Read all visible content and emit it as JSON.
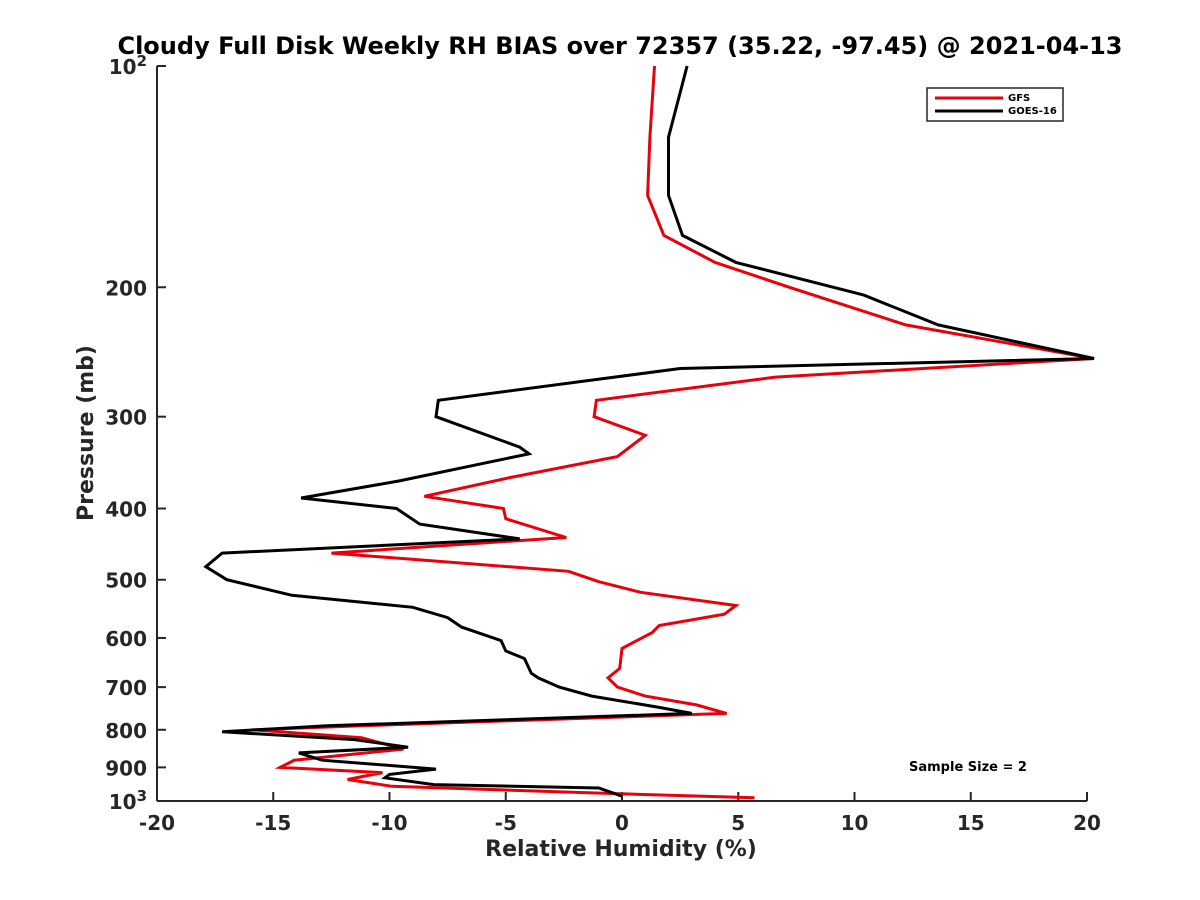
{
  "chart_data": {
    "type": "line",
    "title": "Cloudy Full Disk Weekly RH BIAS over 72357 (35.22, -97.45) @ 2021-04-13",
    "xlabel": "Relative Humidity (%)",
    "ylabel": "Pressure (mb)",
    "xlim": [
      -20,
      20
    ],
    "ylim": [
      100,
      1000
    ],
    "y_scale": "log",
    "y_reversed": true,
    "grid": false,
    "legend_position": "top-right",
    "x_ticks": [
      -20,
      -15,
      -10,
      -5,
      0,
      5,
      10,
      15,
      20
    ],
    "x_tick_labels": [
      "-20",
      "-15",
      "-10",
      "-5",
      "0",
      "5",
      "10",
      "15",
      "20"
    ],
    "y_ticks": [
      100,
      200,
      300,
      400,
      500,
      600,
      700,
      800,
      900,
      1000
    ],
    "y_tick_labels": [
      {
        "base": "10",
        "exp": "2"
      },
      {
        "base": "200",
        "exp": ""
      },
      {
        "base": "300",
        "exp": ""
      },
      {
        "base": "400",
        "exp": ""
      },
      {
        "base": "500",
        "exp": ""
      },
      {
        "base": "600",
        "exp": ""
      },
      {
        "base": "700",
        "exp": ""
      },
      {
        "base": "800",
        "exp": ""
      },
      {
        "base": "900",
        "exp": ""
      },
      {
        "base": "10",
        "exp": "3"
      }
    ],
    "annotation": "Sample Size = 2",
    "series": [
      {
        "name": "GFS",
        "color": "#e8000b",
        "points": [
          {
            "x": 1.4,
            "y": 100
          },
          {
            "x": 1.2,
            "y": 125
          },
          {
            "x": 1.1,
            "y": 150
          },
          {
            "x": 1.8,
            "y": 170
          },
          {
            "x": 4.0,
            "y": 185
          },
          {
            "x": 7.2,
            "y": 200
          },
          {
            "x": 12.2,
            "y": 225
          },
          {
            "x": 20.3,
            "y": 250
          },
          {
            "x": 6.6,
            "y": 265
          },
          {
            "x": -1.1,
            "y": 285
          },
          {
            "x": -1.2,
            "y": 300
          },
          {
            "x": 1.0,
            "y": 318
          },
          {
            "x": -0.2,
            "y": 340
          },
          {
            "x": -4.8,
            "y": 363
          },
          {
            "x": -8.5,
            "y": 385
          },
          {
            "x": -5.1,
            "y": 400
          },
          {
            "x": -5.0,
            "y": 413
          },
          {
            "x": -2.4,
            "y": 438
          },
          {
            "x": -12.5,
            "y": 460
          },
          {
            "x": -2.3,
            "y": 487
          },
          {
            "x": -1.0,
            "y": 503
          },
          {
            "x": 0.8,
            "y": 520
          },
          {
            "x": 4.9,
            "y": 542
          },
          {
            "x": 4.4,
            "y": 557
          },
          {
            "x": 1.6,
            "y": 577
          },
          {
            "x": 1.3,
            "y": 590
          },
          {
            "x": 0.0,
            "y": 620
          },
          {
            "x": -0.1,
            "y": 660
          },
          {
            "x": -0.6,
            "y": 680
          },
          {
            "x": -0.2,
            "y": 700
          },
          {
            "x": 1.0,
            "y": 720
          },
          {
            "x": 3.2,
            "y": 740
          },
          {
            "x": 4.5,
            "y": 760
          },
          {
            "x": -11.2,
            "y": 790
          },
          {
            "x": -15.9,
            "y": 800
          },
          {
            "x": -11.2,
            "y": 820
          },
          {
            "x": -9.4,
            "y": 850
          },
          {
            "x": -14.1,
            "y": 880
          },
          {
            "x": -14.7,
            "y": 900
          },
          {
            "x": -10.3,
            "y": 915
          },
          {
            "x": -11.8,
            "y": 935
          },
          {
            "x": -9.9,
            "y": 955
          },
          {
            "x": -1.3,
            "y": 975
          },
          {
            "x": 5.7,
            "y": 990
          }
        ]
      },
      {
        "name": "GOES-16",
        "color": "#000000",
        "points": [
          {
            "x": 2.8,
            "y": 100
          },
          {
            "x": 2.0,
            "y": 125
          },
          {
            "x": 2.0,
            "y": 150
          },
          {
            "x": 2.6,
            "y": 170
          },
          {
            "x": 4.9,
            "y": 185
          },
          {
            "x": 10.4,
            "y": 205
          },
          {
            "x": 13.6,
            "y": 225
          },
          {
            "x": 20.3,
            "y": 250
          },
          {
            "x": 2.5,
            "y": 258
          },
          {
            "x": -7.9,
            "y": 285
          },
          {
            "x": -8.0,
            "y": 300
          },
          {
            "x": -4.4,
            "y": 330
          },
          {
            "x": -4.0,
            "y": 337
          },
          {
            "x": -9.6,
            "y": 367
          },
          {
            "x": -13.8,
            "y": 387
          },
          {
            "x": -9.7,
            "y": 400
          },
          {
            "x": -8.7,
            "y": 420
          },
          {
            "x": -4.4,
            "y": 440
          },
          {
            "x": -17.2,
            "y": 460
          },
          {
            "x": -17.9,
            "y": 480
          },
          {
            "x": -17.0,
            "y": 500
          },
          {
            "x": -14.2,
            "y": 525
          },
          {
            "x": -9.0,
            "y": 545
          },
          {
            "x": -7.5,
            "y": 563
          },
          {
            "x": -6.9,
            "y": 580
          },
          {
            "x": -5.2,
            "y": 605
          },
          {
            "x": -5.0,
            "y": 625
          },
          {
            "x": -4.2,
            "y": 640
          },
          {
            "x": -3.9,
            "y": 670
          },
          {
            "x": -3.6,
            "y": 680
          },
          {
            "x": -2.7,
            "y": 700
          },
          {
            "x": -1.3,
            "y": 720
          },
          {
            "x": 1.5,
            "y": 745
          },
          {
            "x": 3.0,
            "y": 760
          },
          {
            "x": -12.7,
            "y": 790
          },
          {
            "x": -17.2,
            "y": 805
          },
          {
            "x": -11.5,
            "y": 825
          },
          {
            "x": -9.2,
            "y": 845
          },
          {
            "x": -13.9,
            "y": 860
          },
          {
            "x": -12.9,
            "y": 880
          },
          {
            "x": -8.0,
            "y": 905
          },
          {
            "x": -10.0,
            "y": 920
          },
          {
            "x": -10.2,
            "y": 930
          },
          {
            "x": -8.1,
            "y": 950
          },
          {
            "x": -1.0,
            "y": 960
          },
          {
            "x": 0.0,
            "y": 985
          }
        ]
      }
    ]
  }
}
